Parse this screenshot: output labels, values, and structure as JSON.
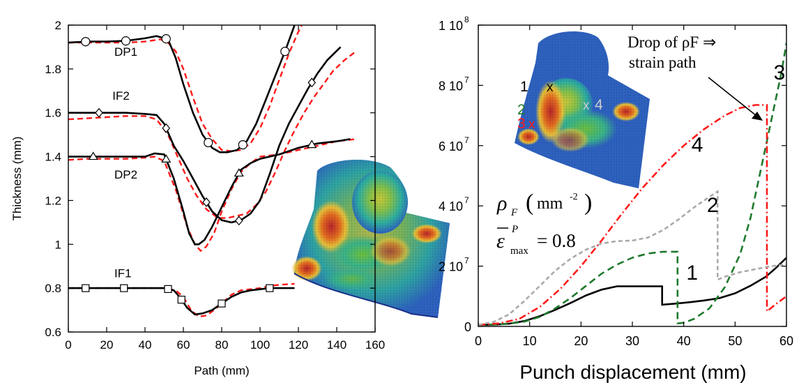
{
  "chart_data": [
    {
      "type": "line",
      "xlabel": "Path (mm)",
      "ylabel": "Thickness (mm)",
      "xlim": [
        0,
        160
      ],
      "ylim": [
        0.6,
        2.0
      ],
      "xticks": [
        0,
        20,
        40,
        60,
        80,
        100,
        120,
        140,
        160
      ],
      "yticks": [
        0.6,
        0.8,
        1,
        1.2,
        1.4,
        1.6,
        1.8,
        2
      ],
      "ytick_labels": [
        "0.6",
        "0.8",
        "1",
        "1.2",
        "1.4",
        "1.6",
        "1.8",
        "2"
      ],
      "colors": {
        "measured": "#000000",
        "simulated": "#ff1a1a"
      },
      "series": [
        {
          "name": "DP1",
          "label_pos": [
            24,
            1.86
          ],
          "marker": "circle",
          "solid": {
            "x": [
              0,
              10,
              20,
              30,
              40,
              46,
              52,
              56,
              60,
              65,
              70,
              75,
              79,
              83,
              88,
              93,
              98,
              103,
              108,
              113,
              118,
              121
            ],
            "y": [
              1.92,
              1.925,
              1.925,
              1.928,
              1.94,
              1.95,
              1.935,
              1.85,
              1.73,
              1.6,
              1.5,
              1.44,
              1.42,
              1.42,
              1.43,
              1.47,
              1.55,
              1.66,
              1.77,
              1.88,
              2.0,
              2.05
            ]
          },
          "dashed": {
            "x": [
              0,
              10,
              20,
              30,
              40,
              48,
              52,
              56,
              60,
              65,
              70,
              75,
              80,
              85,
              90,
              95,
              100,
              105,
              110,
              115,
              120,
              123
            ],
            "y": [
              1.92,
              1.92,
              1.92,
              1.92,
              1.925,
              1.935,
              1.92,
              1.88,
              1.8,
              1.67,
              1.55,
              1.48,
              1.43,
              1.425,
              1.43,
              1.46,
              1.53,
              1.63,
              1.75,
              1.87,
              1.97,
              2.02
            ]
          },
          "markers_x": [
            9,
            30,
            51,
            73,
            91,
            113
          ]
        },
        {
          "name": "IF2",
          "label_pos": [
            23,
            1.66
          ],
          "marker": "diamond",
          "solid": {
            "x": [
              0,
              10,
              20,
              30,
              40,
              46,
              50,
              55,
              60,
              65,
              70,
              75,
              80,
              85,
              90,
              95,
              100,
              105,
              110,
              115,
              120,
              125,
              130,
              135,
              142
            ],
            "y": [
              1.6,
              1.6,
              1.6,
              1.6,
              1.595,
              1.59,
              1.55,
              1.45,
              1.38,
              1.3,
              1.22,
              1.15,
              1.11,
              1.1,
              1.11,
              1.14,
              1.2,
              1.32,
              1.45,
              1.55,
              1.63,
              1.71,
              1.78,
              1.84,
              1.9
            ]
          },
          "dashed": {
            "x": [
              0,
              10,
              20,
              30,
              40,
              46,
              52,
              57,
              62,
              67,
              72,
              78,
              83,
              88,
              93,
              98,
              103,
              108,
              113,
              118,
              123,
              128,
              133,
              138,
              144,
              150
            ],
            "y": [
              1.57,
              1.575,
              1.58,
              1.585,
              1.585,
              1.57,
              1.5,
              1.4,
              1.3,
              1.22,
              1.16,
              1.12,
              1.12,
              1.13,
              1.14,
              1.18,
              1.24,
              1.33,
              1.43,
              1.52,
              1.6,
              1.67,
              1.73,
              1.79,
              1.84,
              1.88
            ]
          },
          "markers_x": [
            16,
            51,
            72,
            89,
            127
          ]
        },
        {
          "name": "DP2",
          "label_pos": [
            24,
            1.3
          ],
          "marker": "triangle",
          "solid": {
            "x": [
              0,
              10,
              20,
              30,
              40,
              45,
              50,
              55,
              60,
              63,
              66,
              68,
              71,
              75,
              80,
              85,
              90,
              95,
              100,
              110,
              120,
              130,
              140,
              147
            ],
            "y": [
              1.4,
              1.4,
              1.4,
              1.4,
              1.4,
              1.415,
              1.41,
              1.3,
              1.15,
              1.05,
              1.0,
              1.0,
              1.02,
              1.08,
              1.17,
              1.26,
              1.34,
              1.37,
              1.39,
              1.41,
              1.44,
              1.46,
              1.47,
              1.48
            ]
          },
          "dashed": {
            "x": [
              0,
              10,
              20,
              30,
              40,
              45,
              50,
              56,
              62,
              66,
              69,
              72,
              76,
              80,
              85,
              90,
              95,
              100,
              110,
              120,
              130,
              140,
              150
            ],
            "y": [
              1.385,
              1.39,
              1.39,
              1.39,
              1.395,
              1.4,
              1.38,
              1.25,
              1.08,
              1.0,
              0.97,
              0.99,
              1.05,
              1.15,
              1.25,
              1.33,
              1.37,
              1.4,
              1.41,
              1.43,
              1.45,
              1.47,
              1.48
            ]
          },
          "markers_x": [
            13,
            51,
            89,
            127
          ]
        },
        {
          "name": "IF1",
          "label_pos": [
            24,
            0.85
          ],
          "marker": "square",
          "solid": {
            "x": [
              0,
              10,
              20,
              30,
              40,
              50,
              55,
              58,
              62,
              66,
              70,
              75,
              80,
              85,
              90,
              95,
              100,
              105,
              110,
              118
            ],
            "y": [
              0.8,
              0.8,
              0.8,
              0.8,
              0.8,
              0.8,
              0.79,
              0.76,
              0.71,
              0.68,
              0.685,
              0.7,
              0.73,
              0.76,
              0.78,
              0.79,
              0.795,
              0.8,
              0.8,
              0.8
            ]
          },
          "dashed": {
            "x": [
              0,
              10,
              20,
              30,
              40,
              50,
              56,
              60,
              64,
              68,
              72,
              76,
              80,
              85,
              90,
              95,
              100,
              105,
              110,
              118
            ],
            "y": [
              0.8,
              0.8,
              0.8,
              0.8,
              0.8,
              0.8,
              0.79,
              0.76,
              0.7,
              0.67,
              0.675,
              0.7,
              0.73,
              0.77,
              0.79,
              0.795,
              0.8,
              0.81,
              0.815,
              0.82
            ]
          },
          "markers_x": [
            9,
            29,
            52,
            59,
            80,
            105
          ]
        }
      ]
    },
    {
      "type": "line",
      "xlabel": "Punch displacement (mm)",
      "ylabel": "",
      "xlim": [
        0,
        60
      ],
      "ylim": [
        0,
        100000000
      ],
      "xticks": [
        0,
        10,
        20,
        30,
        40,
        50,
        60
      ],
      "yticks": [
        0,
        20000000,
        40000000,
        60000000,
        80000000,
        100000000
      ],
      "ytick_labels": [
        {
          "mant": "0",
          "exp": ""
        },
        {
          "mant": "2 10",
          "exp": "7"
        },
        {
          "mant": "4 10",
          "exp": "7"
        },
        {
          "mant": "6 10",
          "exp": "7"
        },
        {
          "mant": "8 10",
          "exp": "7"
        },
        {
          "mant": "1 10",
          "exp": "8"
        }
      ],
      "series": [
        {
          "name": "1",
          "color": "#000000",
          "dash": "",
          "x": [
            0,
            3,
            6,
            9,
            12,
            15,
            18,
            21,
            24,
            27,
            30,
            33,
            35.8,
            35.8,
            38,
            41,
            44,
            47,
            50,
            53,
            56,
            58,
            60
          ],
          "y": [
            500000.0,
            600000.0,
            900000.0,
            1800000.0,
            3400000.0,
            5500000.0,
            7800000.0,
            10300000.0,
            12200000.0,
            13300000.0,
            13300000.0,
            13300000.0,
            13300000.0,
            7200000.0,
            7500000.0,
            8000000.0,
            8600000.0,
            9400000.0,
            11000000.0,
            13500000.0,
            16500000.0,
            19500000.0,
            22800000.0
          ]
        },
        {
          "name": "2",
          "color": "#1e7a2d",
          "dash": "10,6",
          "x": [
            0,
            3,
            6,
            9,
            12,
            15,
            18,
            21,
            24,
            27,
            30,
            33,
            36,
            38.8,
            38.8,
            40,
            42,
            45,
            48,
            51,
            53,
            55,
            57,
            59,
            60
          ],
          "y": [
            500000.0,
            600000.0,
            900000.0,
            1600000.0,
            3200000.0,
            6000000.0,
            9500000.0,
            13500000.0,
            17500000.0,
            20500000.0,
            22800000.0,
            24200000.0,
            24800000.0,
            24800000.0,
            1000000.0,
            1200000.0,
            2500000.0,
            6000000.0,
            13000000.0,
            24000000.0,
            36000000.0,
            52000000.0,
            68000000.0,
            84000000.0,
            94000000.0
          ]
        },
        {
          "name": "3",
          "color": "#ff1a1a",
          "dash": "10,4,2,4",
          "x": [
            0,
            4,
            8,
            12,
            16,
            20,
            24,
            28,
            32,
            36,
            40,
            44,
            48,
            51,
            54,
            56.2,
            56.2,
            58,
            60
          ],
          "y": [
            500000.0,
            1000000.0,
            2500000.0,
            6500000.0,
            12500000.0,
            20000000.0,
            28500000.0,
            37500000.0,
            46000000.0,
            53500000.0,
            60000000.0,
            65500000.0,
            70000000.0,
            72500000.0,
            73500000.0,
            73500000.0,
            5000000.0,
            7500000.0,
            10000000.0
          ]
        },
        {
          "name": "4",
          "color": "#aaaaaa",
          "dash": "6,4",
          "x": [
            0,
            3,
            6,
            9,
            12,
            15,
            18,
            21,
            24,
            27,
            30,
            33,
            36,
            39,
            42,
            45,
            46.6,
            46.6,
            48,
            51,
            54,
            57,
            60
          ],
          "y": [
            500000.0,
            1500000.0,
            4000000.0,
            8500000.0,
            13500000.0,
            18500000.0,
            22500000.0,
            25500000.0,
            27500000.0,
            28300000.0,
            28500000.0,
            29500000.0,
            32000000.0,
            35500000.0,
            39500000.0,
            43000000.0,
            44800000.0,
            15500000.0,
            16500000.0,
            18000000.0,
            19000000.0,
            20000000.0,
            20500000.0
          ]
        }
      ],
      "series_labels": [
        {
          "text": "1",
          "color": "#000000",
          "at": [
            40.5,
            15500000.0
          ]
        },
        {
          "text": "2",
          "color": "#1e7a2d",
          "at": [
            44.5,
            38000000.0
          ]
        },
        {
          "text": "3",
          "color": "#ff1a1a",
          "at": [
            57.5,
            82000000.0
          ]
        },
        {
          "text": "4",
          "color": "#aaaaaa",
          "at": [
            41.5,
            58000000.0
          ]
        }
      ],
      "annotation": {
        "line1": "Drop of ρF ⇒",
        "line2": "strain path"
      },
      "formula": {
        "rho": "ρ",
        "rho_sub": "F",
        "units": "mm",
        "units_exp": "-2",
        "eps": "ε",
        "eps_sup": "P",
        "eps_sub": "max",
        "eq": "= 0.8"
      }
    }
  ],
  "inset_points": [
    {
      "label": "1",
      "color": "#000000",
      "mark": "x"
    },
    {
      "label": "2",
      "color": "#1e7a2d",
      "mark": ""
    },
    {
      "label": "3",
      "color": "#ff1a1a",
      "mark": "x"
    },
    {
      "label": "4",
      "color": "#bbbbbb",
      "mark": "x"
    }
  ]
}
